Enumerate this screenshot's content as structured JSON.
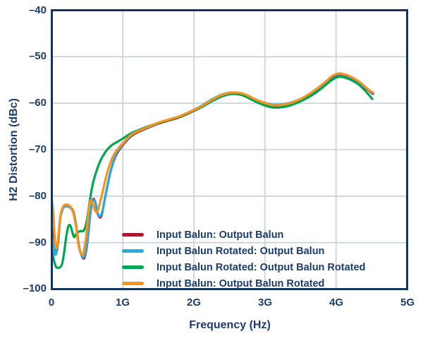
{
  "figure": {
    "background": "#ffffff",
    "frame_color": "#16355e",
    "grid_color": "#c7cfdc",
    "text_color": "#1b3c6d"
  },
  "chart_data": {
    "type": "line",
    "title": "",
    "xlabel": "Frequency (Hz)",
    "ylabel": "H2 Distortion (dBc)",
    "x_unit": "GHz",
    "xlim": [
      0,
      5
    ],
    "ylim": [
      -100,
      -40
    ],
    "grid": true,
    "legend_position": "inside-bottom-center",
    "x_ticks": [
      {
        "value": 0,
        "label": "0"
      },
      {
        "value": 1,
        "label": "1G"
      },
      {
        "value": 2,
        "label": "2G"
      },
      {
        "value": 3,
        "label": "3G"
      },
      {
        "value": 4,
        "label": "4G"
      },
      {
        "value": 5,
        "label": "5G"
      }
    ],
    "y_ticks": [
      {
        "value": -40,
        "label": "–40"
      },
      {
        "value": -50,
        "label": "–50"
      },
      {
        "value": -60,
        "label": "–60"
      },
      {
        "value": -70,
        "label": "–70"
      },
      {
        "value": -80,
        "label": "–80"
      },
      {
        "value": -90,
        "label": "–90"
      },
      {
        "value": -100,
        "label": "–100"
      }
    ],
    "series": [
      {
        "name": "Input Balun: Output Balun",
        "color": "#A6192E",
        "points": [
          [
            0.0,
            -84.8
          ],
          [
            0.03,
            -88.5
          ],
          [
            0.06,
            -91.7
          ],
          [
            0.09,
            -89.5
          ],
          [
            0.12,
            -84.5
          ],
          [
            0.16,
            -82.5
          ],
          [
            0.2,
            -82.1
          ],
          [
            0.25,
            -82.3
          ],
          [
            0.3,
            -83.2
          ],
          [
            0.34,
            -86.0
          ],
          [
            0.38,
            -90.5
          ],
          [
            0.42,
            -92.8
          ],
          [
            0.46,
            -93.2
          ],
          [
            0.5,
            -90.0
          ],
          [
            0.54,
            -84.0
          ],
          [
            0.575,
            -80.8
          ],
          [
            0.61,
            -81.2
          ],
          [
            0.645,
            -83.8
          ],
          [
            0.68,
            -84.6
          ],
          [
            0.71,
            -83.5
          ],
          [
            0.76,
            -79.5
          ],
          [
            0.83,
            -74.5
          ],
          [
            0.9,
            -71.3
          ],
          [
            0.96,
            -69.8
          ],
          [
            1.0,
            -69.0
          ],
          [
            1.1,
            -67.3
          ],
          [
            1.2,
            -66.3
          ],
          [
            1.35,
            -65.3
          ],
          [
            1.5,
            -64.4
          ],
          [
            1.65,
            -63.7
          ],
          [
            1.8,
            -63.0
          ],
          [
            1.95,
            -62.0
          ],
          [
            2.1,
            -60.9
          ],
          [
            2.25,
            -59.5
          ],
          [
            2.4,
            -58.3
          ],
          [
            2.55,
            -57.8
          ],
          [
            2.7,
            -58.1
          ],
          [
            2.9,
            -59.5
          ],
          [
            3.1,
            -60.5
          ],
          [
            3.3,
            -60.3
          ],
          [
            3.5,
            -59.2
          ],
          [
            3.7,
            -57.4
          ],
          [
            3.85,
            -55.6
          ],
          [
            3.95,
            -54.4
          ],
          [
            4.05,
            -53.8
          ],
          [
            4.18,
            -54.3
          ],
          [
            4.32,
            -55.5
          ],
          [
            4.45,
            -57.2
          ],
          [
            4.52,
            -58.0
          ]
        ]
      },
      {
        "name": "Input Balun Rotated: Output Balun",
        "color": "#29ABE2",
        "points": [
          [
            0.0,
            -88.8
          ],
          [
            0.03,
            -91.0
          ],
          [
            0.055,
            -92.6
          ],
          [
            0.09,
            -90.0
          ],
          [
            0.12,
            -84.8
          ],
          [
            0.16,
            -82.6
          ],
          [
            0.2,
            -82.2
          ],
          [
            0.25,
            -82.4
          ],
          [
            0.3,
            -83.4
          ],
          [
            0.34,
            -86.2
          ],
          [
            0.38,
            -90.8
          ],
          [
            0.42,
            -92.7
          ],
          [
            0.46,
            -92.9
          ],
          [
            0.5,
            -89.5
          ],
          [
            0.54,
            -83.5
          ],
          [
            0.58,
            -80.9
          ],
          [
            0.615,
            -81.5
          ],
          [
            0.65,
            -83.9
          ],
          [
            0.68,
            -84.3
          ],
          [
            0.715,
            -83.0
          ],
          [
            0.765,
            -79.0
          ],
          [
            0.835,
            -74.2
          ],
          [
            0.9,
            -71.0
          ],
          [
            0.96,
            -69.6
          ],
          [
            1.0,
            -68.8
          ],
          [
            1.1,
            -67.1
          ],
          [
            1.2,
            -66.1
          ],
          [
            1.35,
            -65.2
          ],
          [
            1.5,
            -64.3
          ],
          [
            1.65,
            -63.5
          ],
          [
            1.8,
            -62.8
          ],
          [
            1.95,
            -61.8
          ],
          [
            2.1,
            -60.6
          ],
          [
            2.25,
            -59.2
          ],
          [
            2.4,
            -58.1
          ],
          [
            2.55,
            -57.7
          ],
          [
            2.7,
            -58.0
          ],
          [
            2.9,
            -59.4
          ],
          [
            3.1,
            -60.3
          ],
          [
            3.3,
            -60.1
          ],
          [
            3.5,
            -59.1
          ],
          [
            3.7,
            -57.3
          ],
          [
            3.85,
            -55.5
          ],
          [
            3.95,
            -54.2
          ],
          [
            4.05,
            -53.7
          ],
          [
            4.18,
            -54.2
          ],
          [
            4.32,
            -55.4
          ],
          [
            4.45,
            -57.1
          ],
          [
            4.52,
            -57.8
          ]
        ]
      },
      {
        "name": "Input Balun Rotated: Output Balun Rotated",
        "color": "#00A651",
        "points": [
          [
            0.0,
            -91.3
          ],
          [
            0.03,
            -93.8
          ],
          [
            0.06,
            -95.2
          ],
          [
            0.1,
            -95.4
          ],
          [
            0.14,
            -94.8
          ],
          [
            0.17,
            -92.5
          ],
          [
            0.2,
            -89.0
          ],
          [
            0.23,
            -86.6
          ],
          [
            0.26,
            -86.3
          ],
          [
            0.29,
            -87.8
          ],
          [
            0.315,
            -88.8
          ],
          [
            0.35,
            -88.0
          ],
          [
            0.4,
            -87.5
          ],
          [
            0.45,
            -87.4
          ],
          [
            0.49,
            -85.5
          ],
          [
            0.53,
            -81.5
          ],
          [
            0.57,
            -77.8
          ],
          [
            0.62,
            -75.0
          ],
          [
            0.68,
            -72.5
          ],
          [
            0.75,
            -70.6
          ],
          [
            0.83,
            -69.2
          ],
          [
            0.9,
            -68.5
          ],
          [
            1.0,
            -67.6
          ],
          [
            1.1,
            -66.6
          ],
          [
            1.2,
            -65.9
          ],
          [
            1.35,
            -65.0
          ],
          [
            1.5,
            -64.3
          ],
          [
            1.65,
            -63.6
          ],
          [
            1.8,
            -62.9
          ],
          [
            1.95,
            -61.9
          ],
          [
            2.1,
            -60.9
          ],
          [
            2.25,
            -59.6
          ],
          [
            2.4,
            -58.5
          ],
          [
            2.55,
            -58.0
          ],
          [
            2.7,
            -58.4
          ],
          [
            2.9,
            -59.9
          ],
          [
            3.1,
            -60.9
          ],
          [
            3.3,
            -60.7
          ],
          [
            3.5,
            -59.6
          ],
          [
            3.7,
            -57.9
          ],
          [
            3.85,
            -56.1
          ],
          [
            3.95,
            -54.9
          ],
          [
            4.05,
            -54.3
          ],
          [
            4.18,
            -54.8
          ],
          [
            4.32,
            -56.0
          ],
          [
            4.42,
            -57.5
          ],
          [
            4.51,
            -59.1
          ]
        ]
      },
      {
        "name": "Input Balun: Output Balun Rotated",
        "color": "#F7941E",
        "points": [
          [
            0.0,
            -80.8
          ],
          [
            0.02,
            -83.5
          ],
          [
            0.045,
            -90.0
          ],
          [
            0.07,
            -91.0
          ],
          [
            0.1,
            -87.5
          ],
          [
            0.13,
            -83.5
          ],
          [
            0.17,
            -82.0
          ],
          [
            0.21,
            -81.8
          ],
          [
            0.26,
            -82.2
          ],
          [
            0.3,
            -83.5
          ],
          [
            0.34,
            -86.5
          ],
          [
            0.375,
            -90.5
          ],
          [
            0.41,
            -92.3
          ],
          [
            0.44,
            -92.4
          ],
          [
            0.48,
            -89.0
          ],
          [
            0.515,
            -83.5
          ],
          [
            0.545,
            -81.0
          ],
          [
            0.58,
            -81.8
          ],
          [
            0.615,
            -83.3
          ],
          [
            0.65,
            -83.0
          ],
          [
            0.7,
            -80.0
          ],
          [
            0.77,
            -75.5
          ],
          [
            0.85,
            -71.8
          ],
          [
            0.93,
            -69.8
          ],
          [
            1.0,
            -68.6
          ],
          [
            1.1,
            -67.0
          ],
          [
            1.2,
            -66.1
          ],
          [
            1.35,
            -65.1
          ],
          [
            1.5,
            -64.2
          ],
          [
            1.65,
            -63.5
          ],
          [
            1.8,
            -62.8
          ],
          [
            1.95,
            -61.8
          ],
          [
            2.1,
            -60.7
          ],
          [
            2.25,
            -59.3
          ],
          [
            2.4,
            -58.2
          ],
          [
            2.55,
            -57.7
          ],
          [
            2.7,
            -58.0
          ],
          [
            2.9,
            -59.4
          ],
          [
            3.1,
            -60.4
          ],
          [
            3.3,
            -60.2
          ],
          [
            3.5,
            -59.1
          ],
          [
            3.7,
            -57.2
          ],
          [
            3.85,
            -55.4
          ],
          [
            3.95,
            -54.1
          ],
          [
            4.05,
            -53.6
          ],
          [
            4.18,
            -54.1
          ],
          [
            4.32,
            -55.3
          ],
          [
            4.45,
            -57.0
          ],
          [
            4.52,
            -57.7
          ]
        ]
      }
    ]
  }
}
